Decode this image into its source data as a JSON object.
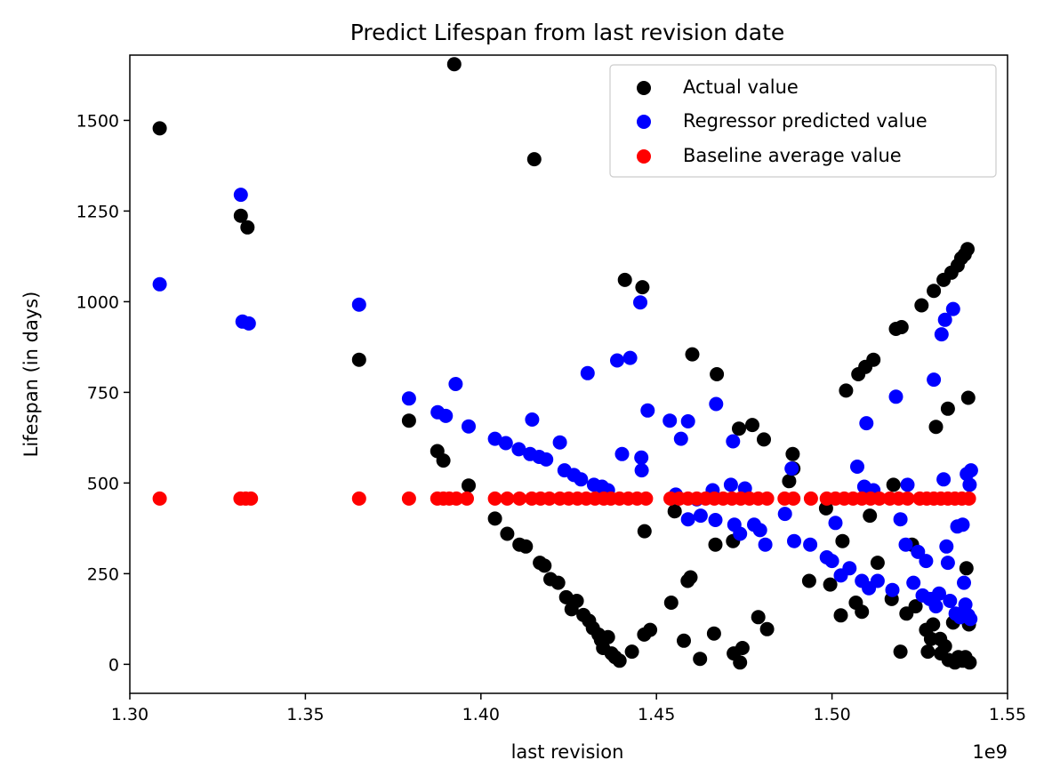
{
  "chart_data": {
    "type": "scatter",
    "title": "Predict Lifespan from last revision date",
    "xlabel": "last revision",
    "ylabel": "Lifespan (in days)",
    "x_offset_label": "1e9",
    "xlim": [
      1.3,
      1.55
    ],
    "ylim": [
      -80,
      1680
    ],
    "x_ticks": [
      1.3,
      1.35,
      1.4,
      1.45,
      1.5,
      1.55
    ],
    "x_tick_labels": [
      "1.30",
      "1.35",
      "1.40",
      "1.45",
      "1.50",
      "1.55"
    ],
    "y_ticks": [
      0,
      250,
      500,
      750,
      1000,
      1250,
      1500
    ],
    "y_tick_labels": [
      "0",
      "250",
      "500",
      "750",
      "1000",
      "1250",
      "1500"
    ],
    "grid": false,
    "legend": "top-right",
    "series": [
      {
        "name": "Actual value",
        "color": "#000000",
        "points": [
          [
            1.3085,
            1478
          ],
          [
            1.3316,
            1237
          ],
          [
            1.3335,
            1205
          ],
          [
            1.3653,
            840
          ],
          [
            1.3795,
            672
          ],
          [
            1.3876,
            588
          ],
          [
            1.3893,
            562
          ],
          [
            1.3924,
            1655
          ],
          [
            1.3965,
            493
          ],
          [
            1.404,
            402
          ],
          [
            1.4075,
            360
          ],
          [
            1.411,
            330
          ],
          [
            1.4128,
            325
          ],
          [
            1.4152,
            1393
          ],
          [
            1.4168,
            280
          ],
          [
            1.4181,
            272
          ],
          [
            1.4198,
            235
          ],
          [
            1.422,
            225
          ],
          [
            1.4243,
            185
          ],
          [
            1.4258,
            152
          ],
          [
            1.4273,
            175
          ],
          [
            1.4292,
            136
          ],
          [
            1.4308,
            120
          ],
          [
            1.4319,
            100
          ],
          [
            1.4335,
            82
          ],
          [
            1.4342,
            67
          ],
          [
            1.4348,
            45
          ],
          [
            1.4362,
            75
          ],
          [
            1.4372,
            30
          ],
          [
            1.4382,
            20
          ],
          [
            1.4395,
            10
          ],
          [
            1.441,
            1060
          ],
          [
            1.443,
            35
          ],
          [
            1.446,
            1040
          ],
          [
            1.4466,
            367
          ],
          [
            1.4465,
            82
          ],
          [
            1.4482,
            95
          ],
          [
            1.4542,
            170
          ],
          [
            1.4552,
            422
          ],
          [
            1.4578,
            65
          ],
          [
            1.4589,
            230
          ],
          [
            1.4597,
            240
          ],
          [
            1.4602,
            855
          ],
          [
            1.4624,
            15
          ],
          [
            1.4672,
            800
          ],
          [
            1.4668,
            330
          ],
          [
            1.4664,
            85
          ],
          [
            1.4718,
            340
          ],
          [
            1.472,
            30
          ],
          [
            1.4735,
            650
          ],
          [
            1.4738,
            5
          ],
          [
            1.4745,
            45
          ],
          [
            1.4773,
            660
          ],
          [
            1.479,
            130
          ],
          [
            1.4806,
            620
          ],
          [
            1.4815,
            97
          ],
          [
            1.4878,
            505
          ],
          [
            1.4888,
            580
          ],
          [
            1.489,
            540
          ],
          [
            1.4935,
            230
          ],
          [
            1.4983,
            430
          ],
          [
            1.4995,
            220
          ],
          [
            1.5025,
            135
          ],
          [
            1.503,
            340
          ],
          [
            1.504,
            755
          ],
          [
            1.5068,
            170
          ],
          [
            1.5075,
            800
          ],
          [
            1.5085,
            145
          ],
          [
            1.5095,
            820
          ],
          [
            1.5108,
            410
          ],
          [
            1.5118,
            840
          ],
          [
            1.513,
            280
          ],
          [
            1.517,
            180
          ],
          [
            1.5175,
            495
          ],
          [
            1.5182,
            925
          ],
          [
            1.5195,
            35
          ],
          [
            1.5198,
            930
          ],
          [
            1.5212,
            140
          ],
          [
            1.5228,
            330
          ],
          [
            1.5238,
            160
          ],
          [
            1.5255,
            990
          ],
          [
            1.5268,
            95
          ],
          [
            1.5273,
            35
          ],
          [
            1.5282,
            70
          ],
          [
            1.5288,
            110
          ],
          [
            1.529,
            1030
          ],
          [
            1.5296,
            655
          ],
          [
            1.5308,
            70
          ],
          [
            1.531,
            30
          ],
          [
            1.5318,
            1060
          ],
          [
            1.5322,
            50
          ],
          [
            1.533,
            705
          ],
          [
            1.5332,
            12
          ],
          [
            1.534,
            1080
          ],
          [
            1.5345,
            115
          ],
          [
            1.535,
            5
          ],
          [
            1.5358,
            1100
          ],
          [
            1.536,
            20
          ],
          [
            1.5368,
            1120
          ],
          [
            1.5372,
            10
          ],
          [
            1.5378,
            1130
          ],
          [
            1.538,
            20
          ],
          [
            1.5383,
            265
          ],
          [
            1.5386,
            1145
          ],
          [
            1.5388,
            735
          ],
          [
            1.539,
            110
          ],
          [
            1.5392,
            5
          ]
        ]
      },
      {
        "name": "Regressor predicted value",
        "color": "#0000ff",
        "points": [
          [
            1.3085,
            1048
          ],
          [
            1.3316,
            1295
          ],
          [
            1.3321,
            945
          ],
          [
            1.3339,
            940
          ],
          [
            1.3653,
            992
          ],
          [
            1.3795,
            733
          ],
          [
            1.3877,
            695
          ],
          [
            1.39,
            685
          ],
          [
            1.3928,
            773
          ],
          [
            1.3965,
            656
          ],
          [
            1.404,
            622
          ],
          [
            1.4071,
            610
          ],
          [
            1.4108,
            593
          ],
          [
            1.414,
            580
          ],
          [
            1.4146,
            675
          ],
          [
            1.4166,
            572
          ],
          [
            1.4186,
            565
          ],
          [
            1.4225,
            612
          ],
          [
            1.4238,
            535
          ],
          [
            1.4265,
            522
          ],
          [
            1.4285,
            510
          ],
          [
            1.4304,
            803
          ],
          [
            1.4322,
            495
          ],
          [
            1.4345,
            490
          ],
          [
            1.4362,
            480
          ],
          [
            1.4388,
            838
          ],
          [
            1.4402,
            580
          ],
          [
            1.4425,
            845
          ],
          [
            1.4454,
            998
          ],
          [
            1.4457,
            570
          ],
          [
            1.4458,
            535
          ],
          [
            1.4475,
            700
          ],
          [
            1.4538,
            672
          ],
          [
            1.4555,
            468
          ],
          [
            1.457,
            622
          ],
          [
            1.459,
            670
          ],
          [
            1.459,
            400
          ],
          [
            1.4615,
            455
          ],
          [
            1.4626,
            410
          ],
          [
            1.466,
            480
          ],
          [
            1.467,
            718
          ],
          [
            1.4668,
            398
          ],
          [
            1.4712,
            495
          ],
          [
            1.4718,
            615
          ],
          [
            1.4722,
            385
          ],
          [
            1.4738,
            360
          ],
          [
            1.4752,
            485
          ],
          [
            1.4778,
            385
          ],
          [
            1.4795,
            370
          ],
          [
            1.481,
            330
          ],
          [
            1.4866,
            415
          ],
          [
            1.4885,
            540
          ],
          [
            1.4892,
            340
          ],
          [
            1.4938,
            330
          ],
          [
            1.4985,
            295
          ],
          [
            1.5,
            285
          ],
          [
            1.501,
            390
          ],
          [
            1.5025,
            245
          ],
          [
            1.505,
            265
          ],
          [
            1.5072,
            545
          ],
          [
            1.5085,
            230
          ],
          [
            1.5092,
            490
          ],
          [
            1.5098,
            665
          ],
          [
            1.5105,
            210
          ],
          [
            1.5118,
            480
          ],
          [
            1.513,
            230
          ],
          [
            1.5172,
            205
          ],
          [
            1.5182,
            738
          ],
          [
            1.5195,
            400
          ],
          [
            1.521,
            330
          ],
          [
            1.5215,
            495
          ],
          [
            1.5232,
            225
          ],
          [
            1.5245,
            310
          ],
          [
            1.5258,
            190
          ],
          [
            1.5268,
            285
          ],
          [
            1.5278,
            180
          ],
          [
            1.5285,
            180
          ],
          [
            1.529,
            785
          ],
          [
            1.5296,
            160
          ],
          [
            1.5305,
            195
          ],
          [
            1.5312,
            910
          ],
          [
            1.5318,
            510
          ],
          [
            1.5322,
            950
          ],
          [
            1.5326,
            325
          ],
          [
            1.533,
            280
          ],
          [
            1.5336,
            175
          ],
          [
            1.5345,
            980
          ],
          [
            1.5352,
            140
          ],
          [
            1.5357,
            380
          ],
          [
            1.5365,
            130
          ],
          [
            1.5372,
            385
          ],
          [
            1.5376,
            225
          ],
          [
            1.538,
            165
          ],
          [
            1.5384,
            525
          ],
          [
            1.5388,
            135
          ],
          [
            1.5392,
            495
          ],
          [
            1.5394,
            125
          ],
          [
            1.5396,
            535
          ]
        ]
      },
      {
        "name": "Baseline average value",
        "color": "#ff0000",
        "points": [
          [
            1.3085,
            457
          ],
          [
            1.3315,
            457
          ],
          [
            1.333,
            457
          ],
          [
            1.3345,
            457
          ],
          [
            1.3653,
            457
          ],
          [
            1.3795,
            457
          ],
          [
            1.3876,
            457
          ],
          [
            1.3893,
            457
          ],
          [
            1.391,
            457
          ],
          [
            1.393,
            457
          ],
          [
            1.396,
            457
          ],
          [
            1.404,
            457
          ],
          [
            1.4075,
            457
          ],
          [
            1.411,
            457
          ],
          [
            1.4145,
            457
          ],
          [
            1.417,
            457
          ],
          [
            1.4195,
            457
          ],
          [
            1.4225,
            457
          ],
          [
            1.425,
            457
          ],
          [
            1.4275,
            457
          ],
          [
            1.43,
            457
          ],
          [
            1.4325,
            457
          ],
          [
            1.435,
            457
          ],
          [
            1.437,
            457
          ],
          [
            1.4395,
            457
          ],
          [
            1.442,
            457
          ],
          [
            1.4445,
            457
          ],
          [
            1.447,
            457
          ],
          [
            1.454,
            457
          ],
          [
            1.4565,
            457
          ],
          [
            1.459,
            457
          ],
          [
            1.4615,
            457
          ],
          [
            1.464,
            457
          ],
          [
            1.4665,
            457
          ],
          [
            1.469,
            457
          ],
          [
            1.4715,
            457
          ],
          [
            1.474,
            457
          ],
          [
            1.4765,
            457
          ],
          [
            1.479,
            457
          ],
          [
            1.4815,
            457
          ],
          [
            1.4865,
            457
          ],
          [
            1.489,
            457
          ],
          [
            1.494,
            457
          ],
          [
            1.4985,
            457
          ],
          [
            1.501,
            457
          ],
          [
            1.5035,
            457
          ],
          [
            1.506,
            457
          ],
          [
            1.5085,
            457
          ],
          [
            1.511,
            457
          ],
          [
            1.5135,
            457
          ],
          [
            1.5165,
            457
          ],
          [
            1.519,
            457
          ],
          [
            1.5215,
            457
          ],
          [
            1.525,
            457
          ],
          [
            1.527,
            457
          ],
          [
            1.529,
            457
          ],
          [
            1.531,
            457
          ],
          [
            1.533,
            457
          ],
          [
            1.535,
            457
          ],
          [
            1.537,
            457
          ],
          [
            1.539,
            457
          ]
        ]
      }
    ]
  }
}
